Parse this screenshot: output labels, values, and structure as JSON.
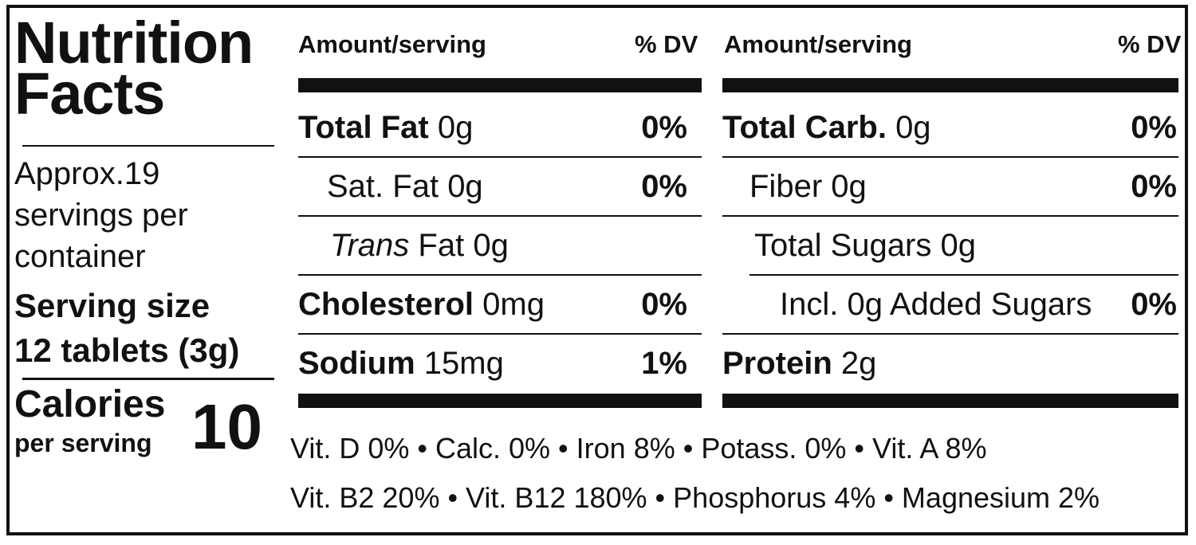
{
  "title": "Nutrition Facts",
  "servings_per_container": "Approx.19 servings per container",
  "serving_size_label": "Serving size",
  "serving_size_value": "12 tablets (3g)",
  "calories": {
    "label": "Calories",
    "sublabel": "per serving",
    "value": "10"
  },
  "left_table": {
    "header_amount": "Amount/serving",
    "header_dv": "% DV",
    "rows": [
      {
        "name": "Total Fat",
        "amount": "0g",
        "dv": "0%"
      },
      {
        "name": "Sat. Fat",
        "amount": "0g",
        "dv": "0%"
      },
      {
        "name": "Trans",
        "suffix": "Fat",
        "amount": "0g",
        "dv": ""
      },
      {
        "name": "Cholesterol",
        "amount": "0mg",
        "dv": "0%"
      },
      {
        "name": "Sodium",
        "amount": "15mg",
        "dv": "1%"
      }
    ]
  },
  "right_table": {
    "header_amount": "Amount/serving",
    "header_dv": "% DV",
    "rows": [
      {
        "name": "Total Carb.",
        "amount": "0g",
        "dv": "0%"
      },
      {
        "name": "Fiber",
        "amount": "0g",
        "dv": "0%"
      },
      {
        "name": "Total Sugars",
        "amount": "0g",
        "dv": ""
      },
      {
        "name": "Incl. 0g Added Sugars",
        "amount": "",
        "dv": "0%"
      },
      {
        "name": "Protein",
        "amount": "2g",
        "dv": ""
      }
    ]
  },
  "vitamins_line1": "Vit. D 0% • Calc. 0% • Iron 8% • Potass. 0% • Vit. A 8%",
  "vitamins_line2": "Vit. B2 20% • Vit. B12 180% • Phosphorus 4% • Magnesium 2%"
}
